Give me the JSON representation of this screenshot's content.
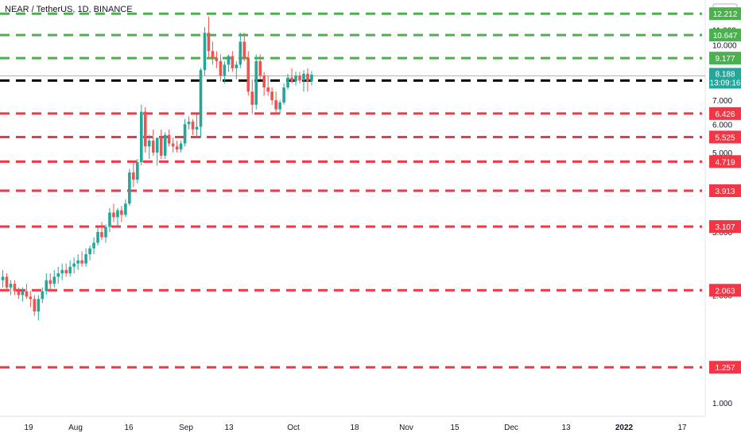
{
  "header": {
    "symbol_title": "NEAR / TetherUS, 1D, BINANCE"
  },
  "price_axis": {
    "currency": "USDT",
    "ticks": [
      "12.000",
      "11.000",
      "10.000",
      "9.000",
      "7.000",
      "6.000",
      "5.000",
      "4.000",
      "3.000",
      "2.000",
      "1.000"
    ],
    "tick_values": [
      12,
      11,
      10,
      9,
      7,
      6,
      5,
      4,
      3,
      2,
      1
    ]
  },
  "time_axis": {
    "labels": [
      "19",
      "Aug",
      "16",
      "Sep",
      "13",
      "Oct",
      "18",
      "Nov",
      "15",
      "Dec",
      "13",
      "2022",
      "17"
    ],
    "bold_labels": [
      "2022"
    ]
  },
  "chart_data": {
    "type": "candlestick",
    "title": "NEAR / TetherUS, 1D, BINANCE",
    "y_scale": "log",
    "ylim": [
      0.97,
      13.0
    ],
    "horizontal_levels": [
      {
        "value": 12.212,
        "label": "12.212",
        "color": "#4caf50",
        "style": "dashed"
      },
      {
        "value": 10.647,
        "label": "10.647",
        "color": "#4caf50",
        "style": "dashed"
      },
      {
        "value": 9.177,
        "label": "9.177",
        "color": "#4caf50",
        "style": "dashed"
      },
      {
        "value": 7.944,
        "label": "7.944",
        "color": "#000000",
        "style": "dashed"
      },
      {
        "value": 6.426,
        "label": "6.426",
        "color": "#f23645",
        "style": "dashed"
      },
      {
        "value": 5.525,
        "label": "5.525",
        "color": "#f23645",
        "style": "dashed"
      },
      {
        "value": 4.719,
        "label": "4.719",
        "color": "#f23645",
        "style": "dashed"
      },
      {
        "value": 3.913,
        "label": "3.913",
        "color": "#f23645",
        "style": "dashed"
      },
      {
        "value": 3.107,
        "label": "3.107",
        "color": "#f23645",
        "style": "dashed"
      },
      {
        "value": 2.063,
        "label": "2.063",
        "color": "#f23645",
        "style": "dashed"
      },
      {
        "value": 1.257,
        "label": "1.257",
        "color": "#f23645",
        "style": "dashed"
      }
    ],
    "last_price": {
      "value": 8.188,
      "label": "8.188",
      "countdown": "13:09:16",
      "color": "#26a69a"
    },
    "colors": {
      "up": "#26a69a",
      "down": "#ef5350"
    },
    "candles": [
      [
        2.2,
        2.35,
        2.1,
        2.25
      ],
      [
        2.25,
        2.3,
        2.05,
        2.1
      ],
      [
        2.1,
        2.2,
        2.0,
        2.15
      ],
      [
        2.15,
        2.2,
        2.0,
        2.05
      ],
      [
        2.05,
        2.1,
        1.95,
        2.0
      ],
      [
        2.0,
        2.1,
        1.92,
        2.05
      ],
      [
        2.05,
        2.15,
        1.95,
        1.98
      ],
      [
        1.98,
        2.05,
        1.85,
        1.95
      ],
      [
        1.95,
        2.0,
        1.75,
        1.8
      ],
      [
        1.8,
        2.0,
        1.7,
        1.95
      ],
      [
        1.95,
        2.1,
        1.9,
        2.05
      ],
      [
        2.05,
        2.3,
        2.0,
        2.2
      ],
      [
        2.2,
        2.3,
        2.05,
        2.15
      ],
      [
        2.15,
        2.35,
        2.1,
        2.25
      ],
      [
        2.25,
        2.4,
        2.15,
        2.3
      ],
      [
        2.3,
        2.45,
        2.2,
        2.35
      ],
      [
        2.35,
        2.45,
        2.25,
        2.3
      ],
      [
        2.3,
        2.5,
        2.25,
        2.4
      ],
      [
        2.4,
        2.55,
        2.3,
        2.45
      ],
      [
        2.45,
        2.6,
        2.35,
        2.5
      ],
      [
        2.5,
        2.65,
        2.4,
        2.45
      ],
      [
        2.45,
        2.7,
        2.4,
        2.6
      ],
      [
        2.6,
        2.75,
        2.5,
        2.7
      ],
      [
        2.7,
        2.9,
        2.6,
        2.8
      ],
      [
        2.8,
        3.1,
        2.75,
        3.0
      ],
      [
        3.0,
        3.2,
        2.85,
        2.9
      ],
      [
        2.9,
        3.15,
        2.8,
        3.1
      ],
      [
        3.1,
        3.5,
        3.0,
        3.4
      ],
      [
        3.4,
        3.6,
        3.2,
        3.3
      ],
      [
        3.3,
        3.5,
        3.1,
        3.45
      ],
      [
        3.45,
        3.55,
        3.2,
        3.35
      ],
      [
        3.35,
        3.7,
        3.3,
        3.6
      ],
      [
        3.6,
        4.5,
        3.55,
        4.4
      ],
      [
        4.4,
        4.7,
        4.0,
        4.2
      ],
      [
        4.2,
        4.8,
        4.1,
        4.7
      ],
      [
        4.7,
        6.8,
        4.6,
        6.5
      ],
      [
        6.5,
        6.7,
        5.0,
        5.2
      ],
      [
        5.2,
        5.6,
        4.8,
        5.4
      ],
      [
        5.4,
        5.8,
        4.9,
        5.0
      ],
      [
        5.0,
        5.5,
        4.6,
        5.5
      ],
      [
        5.5,
        5.8,
        4.8,
        4.9
      ],
      [
        4.9,
        5.7,
        4.8,
        5.6
      ],
      [
        5.6,
        5.8,
        5.2,
        5.3
      ],
      [
        5.3,
        5.5,
        5.0,
        5.2
      ],
      [
        5.2,
        5.4,
        5.0,
        5.1
      ],
      [
        5.1,
        5.4,
        5.0,
        5.3
      ],
      [
        5.3,
        6.2,
        5.2,
        6.0
      ],
      [
        6.0,
        6.3,
        5.8,
        6.1
      ],
      [
        6.1,
        6.2,
        5.6,
        5.8
      ],
      [
        5.8,
        6.4,
        5.5,
        5.9
      ],
      [
        5.9,
        8.6,
        5.5,
        8.5
      ],
      [
        8.5,
        11.2,
        8.2,
        10.8
      ],
      [
        10.8,
        12.0,
        9.2,
        9.6
      ],
      [
        9.6,
        10.2,
        8.8,
        9.2
      ],
      [
        9.2,
        9.6,
        8.6,
        9.0
      ],
      [
        9.0,
        9.4,
        7.9,
        8.2
      ],
      [
        8.2,
        9.0,
        7.8,
        8.8
      ],
      [
        8.8,
        9.4,
        8.4,
        9.3
      ],
      [
        9.3,
        9.6,
        8.4,
        8.6
      ],
      [
        8.6,
        9.0,
        8.0,
        8.8
      ],
      [
        8.8,
        10.8,
        8.6,
        10.2
      ],
      [
        10.2,
        10.8,
        9.0,
        9.2
      ],
      [
        9.2,
        9.6,
        7.2,
        7.4
      ],
      [
        7.4,
        8.0,
        6.4,
        6.8
      ],
      [
        6.8,
        9.4,
        6.6,
        9.0
      ],
      [
        9.0,
        9.4,
        8.0,
        8.2
      ],
      [
        8.2,
        8.4,
        7.2,
        7.6
      ],
      [
        7.6,
        8.2,
        7.2,
        7.4
      ],
      [
        7.4,
        7.6,
        6.8,
        7.0
      ],
      [
        7.0,
        7.4,
        6.4,
        6.6
      ],
      [
        6.6,
        7.0,
        6.4,
        6.9
      ],
      [
        6.9,
        7.8,
        6.8,
        7.6
      ],
      [
        7.6,
        8.3,
        7.5,
        8.1
      ],
      [
        8.1,
        8.6,
        7.8,
        7.9
      ],
      [
        7.9,
        8.4,
        7.7,
        8.2
      ],
      [
        8.2,
        8.4,
        7.8,
        7.95
      ],
      [
        7.95,
        8.5,
        7.4,
        8.3
      ],
      [
        8.3,
        8.6,
        7.4,
        7.9
      ],
      [
        7.9,
        8.45,
        7.7,
        8.25
      ]
    ]
  }
}
